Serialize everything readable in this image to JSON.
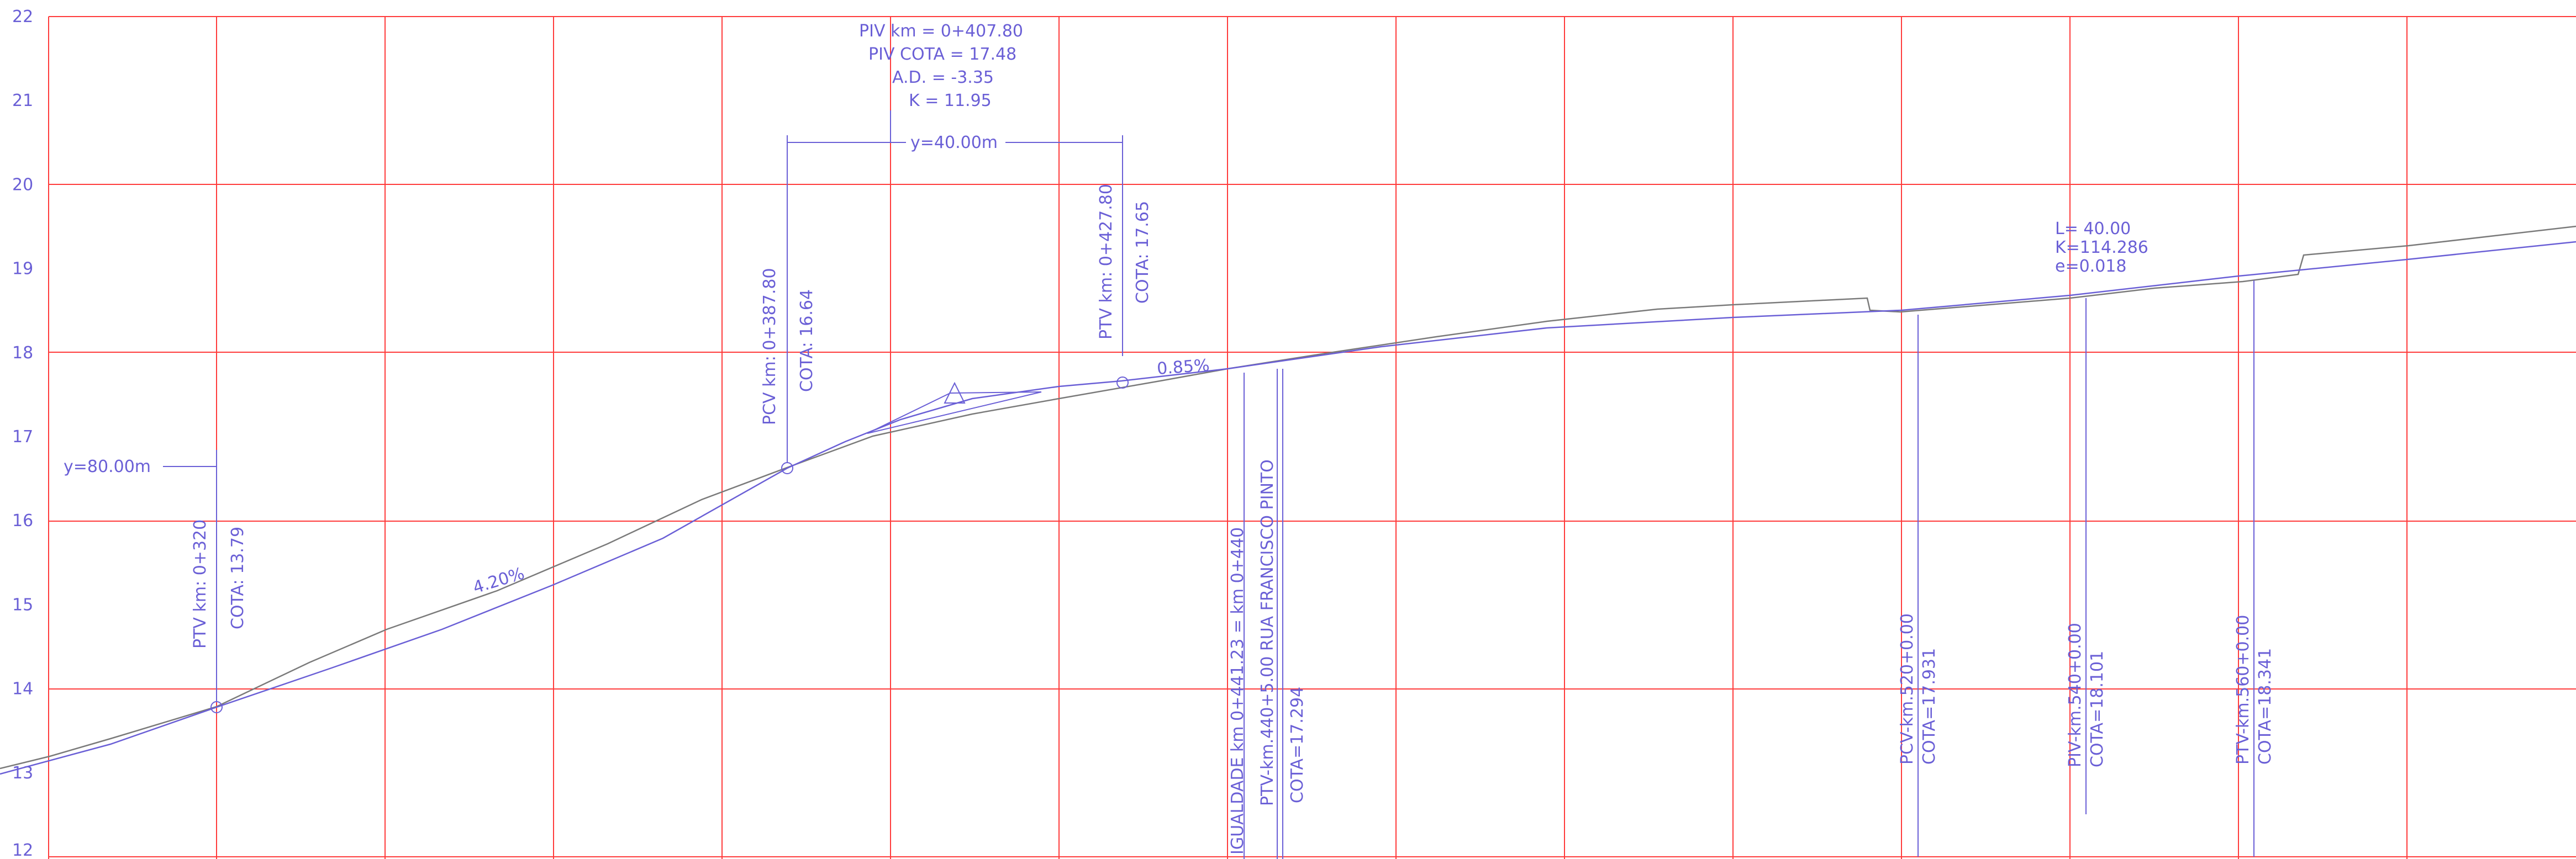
{
  "colors": {
    "grid": "#ff3b3b",
    "design": "#6a5fd6",
    "terrain": "#7a7a7a",
    "annotation": "#6a5fd6",
    "background": "#ffffff"
  },
  "axis": {
    "y_ticks": [
      "12",
      "13",
      "14",
      "15",
      "16",
      "17",
      "18",
      "19",
      "20",
      "21",
      "22"
    ]
  },
  "piv_block": {
    "km": "PIV km  =  0+407.80",
    "cota": "PIV COTA  =  17.48",
    "ad": "A.D.  =  -3.35",
    "k": "K  =  11.95"
  },
  "curve_length": "y=40.00m",
  "left_length": "y=80.00m",
  "stations": {
    "ptv_320_km": "PTV  km:  0+320",
    "ptv_320_cota": "COTA:  13.79",
    "pcv_387_km": "PCV  km:  0+387.80",
    "pcv_387_cota": "COTA:  16.64",
    "ptv_427_km": "PTV  km:  0+427.80",
    "ptv_427_cota": "COTA:  17.65",
    "igualdade": "IGUALDADE  km  0+441.23  =  km  0+440",
    "ptv_440": "PTV-km.440+5.00   RUA  FRANCISCO  PINTO",
    "ptv_440_cota": "COTA=17.294",
    "pcv_520": "PCV-km.520+0.00",
    "pcv_520_cota": "COTA=17.931",
    "piv_540": "PIV-km.540+0.00",
    "piv_540_cota": "COTA=18.101",
    "ptv_560": "PTV-km.560+0.00",
    "ptv_560_cota": "COTA=18.341"
  },
  "grades": {
    "g1": "4.20%",
    "g2": "0.85%"
  },
  "curve2": {
    "l": "L=  40.00",
    "k": "K=114.286",
    "e": "e=0.018"
  }
}
